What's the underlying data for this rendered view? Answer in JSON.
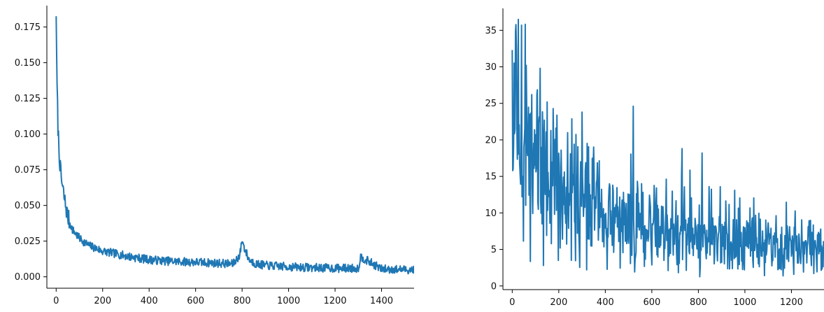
{
  "colors": {
    "series": "#1f77b4",
    "axis": "#000000",
    "background": "#ffffff"
  },
  "chart_data": [
    {
      "type": "line",
      "title": "",
      "xlabel": "",
      "ylabel": "",
      "grid": false,
      "legend": "none",
      "xlim": [
        -40,
        1540
      ],
      "ylim": [
        -0.008,
        0.19
      ],
      "x_ticks": [
        0,
        200,
        400,
        600,
        800,
        1000,
        1200,
        1400
      ],
      "y_ticks": [
        0.0,
        0.025,
        0.05,
        0.075,
        0.1,
        0.125,
        0.15,
        0.175
      ],
      "x_tick_labels": [
        "0",
        "200",
        "400",
        "600",
        "800",
        "1000",
        "1200",
        "1400"
      ],
      "y_tick_labels": [
        "0.000",
        "0.025",
        "0.050",
        "0.075",
        "0.100",
        "0.125",
        "0.150",
        "0.175"
      ],
      "series": [
        {
          "x": [
            0,
            2,
            5,
            8,
            12,
            18,
            25,
            35,
            50,
            70,
            100,
            140,
            200,
            260,
            320,
            400,
            480,
            560,
            640,
            700,
            760,
            790,
            800,
            810,
            830,
            860,
            900,
            1000,
            1100,
            1200,
            1300,
            1310,
            1400,
            1500,
            1540
          ],
          "y": [
            0.186,
            0.15,
            0.125,
            0.105,
            0.09,
            0.075,
            0.065,
            0.055,
            0.042,
            0.033,
            0.027,
            0.022,
            0.018,
            0.016,
            0.014,
            0.012,
            0.011,
            0.0105,
            0.01,
            0.0095,
            0.009,
            0.015,
            0.026,
            0.02,
            0.012,
            0.009,
            0.008,
            0.007,
            0.0065,
            0.006,
            0.006,
            0.014,
            0.0055,
            0.005,
            0.005
          ],
          "noise": 0.003
        }
      ]
    },
    {
      "type": "line",
      "title": "",
      "xlabel": "",
      "ylabel": "",
      "grid": false,
      "legend": "none",
      "xlim": [
        -40,
        1340
      ],
      "ylim": [
        -0.5,
        38
      ],
      "x_ticks": [
        0,
        200,
        400,
        600,
        800,
        1000,
        1200
      ],
      "y_ticks": [
        0,
        5,
        10,
        15,
        20,
        25,
        30,
        35
      ],
      "x_tick_labels": [
        "0",
        "200",
        "400",
        "600",
        "800",
        "1000",
        "1200"
      ],
      "y_tick_labels": [
        "0",
        "5",
        "10",
        "15",
        "20",
        "25",
        "30",
        "35"
      ],
      "series": [
        {
          "x": [
            0,
            20,
            50,
            100,
            150,
            200,
            250,
            300,
            350,
            400,
            450,
            500,
            600,
            700,
            800,
            900,
            1000,
            1100,
            1200,
            1300,
            1340
          ],
          "y": [
            20,
            20,
            18,
            16,
            14,
            13,
            12,
            11,
            10,
            9,
            8.5,
            8.3,
            7.8,
            7.2,
            6.8,
            6.3,
            5.9,
            5.5,
            5.2,
            4.8,
            4.6
          ],
          "spikes": [
            {
              "x": 0,
              "y": 32.3
            },
            {
              "x": 8,
              "y": 30.5
            },
            {
              "x": 25,
              "y": 36.5
            },
            {
              "x": 60,
              "y": 30.2
            },
            {
              "x": 120,
              "y": 29.8
            },
            {
              "x": 300,
              "y": 23.8
            },
            {
              "x": 520,
              "y": 24.6
            },
            {
              "x": 730,
              "y": 18.8
            },
            {
              "x": 815,
              "y": 18.2
            }
          ]
        }
      ]
    }
  ]
}
